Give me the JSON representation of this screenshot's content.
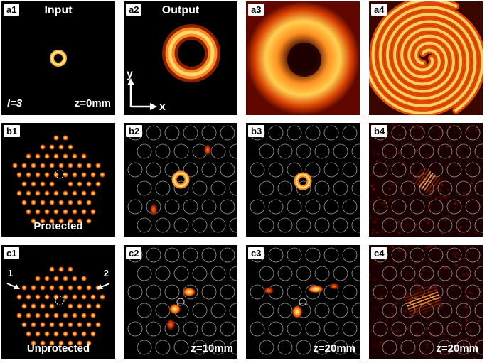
{
  "row_a": {
    "a1": {
      "tag": "a1",
      "title": "Input",
      "charge": "l=3",
      "z": "z=0mm"
    },
    "a2": {
      "tag": "a2",
      "title": "Output",
      "axis_y": "y",
      "axis_x": "x"
    },
    "a3": {
      "tag": "a3"
    },
    "a4": {
      "tag": "a4"
    }
  },
  "row_b": {
    "b1": {
      "tag": "b1",
      "caption": "Protected"
    },
    "b2": {
      "tag": "b2"
    },
    "b3": {
      "tag": "b3"
    },
    "b4": {
      "tag": "b4"
    }
  },
  "row_c": {
    "c1": {
      "tag": "c1",
      "caption": "Unprotected",
      "marker_1": "1",
      "marker_2": "2"
    },
    "c2": {
      "tag": "c2",
      "z": "z=10mm"
    },
    "c3": {
      "tag": "c3",
      "z": "z=20mm"
    },
    "c4": {
      "tag": "c4",
      "z": "z=20mm"
    }
  },
  "colors": {
    "background": "#000000",
    "hot_core": "#ffe07a",
    "hot_mid": "#ff7a10",
    "hot_edge": "#8a1500",
    "lattice_ring": "#9a9a9a"
  }
}
